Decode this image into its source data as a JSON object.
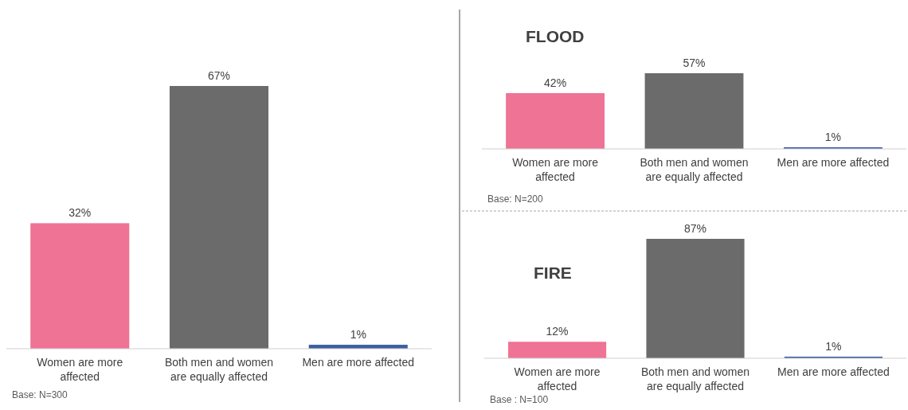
{
  "chart_data": [
    {
      "type": "bar",
      "categories": [
        "Women are more affected",
        "Both men and women are equally affected",
        "Men are more affected"
      ],
      "values": [
        32,
        67,
        1
      ],
      "value_labels": [
        "32%",
        "67%",
        "1%"
      ],
      "colors": [
        "#ee7395",
        "#6b6b6b",
        "#3b5fa0"
      ],
      "annotations": [
        "Base: N=300"
      ]
    },
    {
      "type": "bar",
      "title": "FLOOD",
      "categories": [
        "Women are more affected",
        "Both men and women are equally affected",
        "Men are more affected"
      ],
      "values": [
        42,
        57,
        1
      ],
      "value_labels": [
        "42%",
        "57%",
        "1%"
      ],
      "colors": [
        "#ee7395",
        "#6b6b6b",
        "#3b5fa0"
      ],
      "annotations": [
        "Base: N=200"
      ]
    },
    {
      "type": "bar",
      "title": "FIRE",
      "categories": [
        "Women are more affected",
        "Both men and women are equally affected",
        "Men are more affected"
      ],
      "values": [
        12,
        87,
        1
      ],
      "value_labels": [
        "12%",
        "87%",
        "1%"
      ],
      "colors": [
        "#ee7395",
        "#6b6b6b",
        "#3b5fa0"
      ],
      "annotations": [
        "Base : N=100"
      ]
    }
  ]
}
